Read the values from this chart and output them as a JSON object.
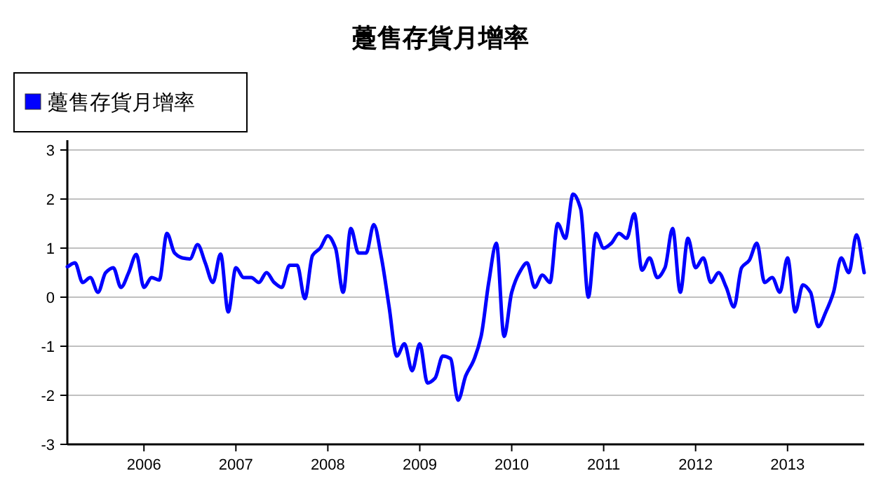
{
  "chart_data": {
    "type": "line",
    "title": "躉售存貨月增率",
    "x": [
      "2005-03",
      "2005-04",
      "2005-05",
      "2005-06",
      "2005-07",
      "2005-08",
      "2005-09",
      "2005-10",
      "2005-11",
      "2005-12",
      "2006-01",
      "2006-02",
      "2006-03",
      "2006-04",
      "2006-05",
      "2006-06",
      "2006-07",
      "2006-08",
      "2006-09",
      "2006-10",
      "2006-11",
      "2006-12",
      "2007-01",
      "2007-02",
      "2007-03",
      "2007-04",
      "2007-05",
      "2007-06",
      "2007-07",
      "2007-08",
      "2007-09",
      "2007-10",
      "2007-11",
      "2007-12",
      "2008-01",
      "2008-02",
      "2008-03",
      "2008-04",
      "2008-05",
      "2008-06",
      "2008-07",
      "2008-08",
      "2008-09",
      "2008-10",
      "2008-11",
      "2008-12",
      "2009-01",
      "2009-02",
      "2009-03",
      "2009-04",
      "2009-05",
      "2009-06",
      "2009-07",
      "2009-08",
      "2009-09",
      "2009-10",
      "2009-11",
      "2009-12",
      "2010-01",
      "2010-02",
      "2010-03",
      "2010-04",
      "2010-05",
      "2010-06",
      "2010-07",
      "2010-08",
      "2010-09",
      "2010-10",
      "2010-11",
      "2010-12",
      "2011-01",
      "2011-02",
      "2011-03",
      "2011-04",
      "2011-05",
      "2011-06",
      "2011-07",
      "2011-08",
      "2011-09",
      "2011-10",
      "2011-11",
      "2011-12",
      "2012-01",
      "2012-02",
      "2012-03",
      "2012-04",
      "2012-05",
      "2012-06",
      "2012-07",
      "2012-08",
      "2012-09",
      "2012-10",
      "2012-11",
      "2012-12",
      "2013-01",
      "2013-02",
      "2013-03",
      "2013-04",
      "2013-05",
      "2013-06",
      "2013-07",
      "2013-08",
      "2013-09",
      "2013-10",
      "2013-11"
    ],
    "series": [
      {
        "name": "躉售存貨月增率",
        "color": "#0000ff",
        "values": [
          0.62,
          0.7,
          0.3,
          0.4,
          0.1,
          0.5,
          0.6,
          0.2,
          0.5,
          0.87,
          0.2,
          0.4,
          0.35,
          1.3,
          0.9,
          0.8,
          0.78,
          1.07,
          0.7,
          0.3,
          0.88,
          -0.3,
          0.6,
          0.4,
          0.4,
          0.3,
          0.5,
          0.3,
          0.2,
          0.65,
          0.65,
          -0.03,
          0.85,
          1.0,
          1.25,
          1.0,
          0.1,
          1.4,
          0.9,
          0.9,
          1.48,
          0.8,
          -0.2,
          -1.2,
          -0.95,
          -1.5,
          -0.95,
          -1.75,
          -1.65,
          -1.2,
          -1.25,
          -2.1,
          -1.6,
          -1.3,
          -0.8,
          0.3,
          1.1,
          -0.8,
          0.1,
          0.5,
          0.7,
          0.2,
          0.45,
          0.3,
          1.5,
          1.2,
          2.1,
          1.8,
          0.0,
          1.3,
          1.0,
          1.1,
          1.3,
          1.2,
          1.7,
          0.55,
          0.8,
          0.4,
          0.6,
          1.4,
          0.1,
          1.2,
          0.6,
          0.8,
          0.3,
          0.5,
          0.2,
          -0.2,
          0.6,
          0.75,
          1.1,
          0.3,
          0.4,
          0.1,
          0.8,
          -0.3,
          0.25,
          0.1,
          -0.6,
          -0.3,
          0.1,
          0.8,
          0.5,
          1.27,
          0.5
        ]
      }
    ],
    "xlim": [
      "2005-03",
      "2013-11"
    ],
    "xticks": [
      "2006",
      "2007",
      "2008",
      "2009",
      "2010",
      "2011",
      "2012",
      "2013"
    ],
    "ylim": [
      -3,
      3
    ],
    "yticks": [
      -3,
      -2,
      -1,
      0,
      1,
      2,
      3
    ],
    "grid": "y",
    "legend": "top left",
    "line_style": "solid"
  }
}
